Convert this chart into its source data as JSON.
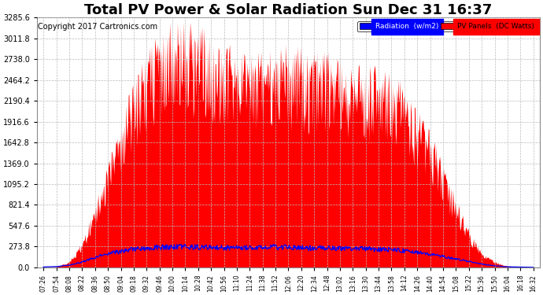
{
  "title": "Total PV Power & Solar Radiation Sun Dec 31 16:37",
  "copyright": "Copyright 2017 Cartronics.com",
  "ylabel_right_ticks": [
    0.0,
    273.8,
    547.6,
    821.4,
    1095.2,
    1369.0,
    1642.8,
    1916.6,
    2190.4,
    2464.2,
    2738.0,
    3011.8,
    3285.6
  ],
  "ymax": 3285.6,
  "ymin": 0.0,
  "pv_color": "#ff0000",
  "radiation_color": "#0000ff",
  "background_color": "#ffffff",
  "grid_color": "#bbbbbb",
  "legend_radiation_label": "Radiation  (w/m2)",
  "legend_pv_label": "PV Panels  (DC Watts)",
  "title_fontsize": 13,
  "copyright_fontsize": 7,
  "xtick_labels": [
    "07:26",
    "07:54",
    "08:08",
    "08:22",
    "08:36",
    "08:50",
    "09:04",
    "09:18",
    "09:32",
    "09:46",
    "10:00",
    "10:14",
    "10:28",
    "10:42",
    "10:56",
    "11:10",
    "11:24",
    "11:38",
    "11:52",
    "12:06",
    "12:20",
    "12:34",
    "12:48",
    "13:02",
    "13:16",
    "13:30",
    "13:44",
    "13:58",
    "14:12",
    "14:26",
    "14:40",
    "14:54",
    "15:08",
    "15:22",
    "15:36",
    "15:50",
    "16:04",
    "16:18",
    "16:32"
  ]
}
